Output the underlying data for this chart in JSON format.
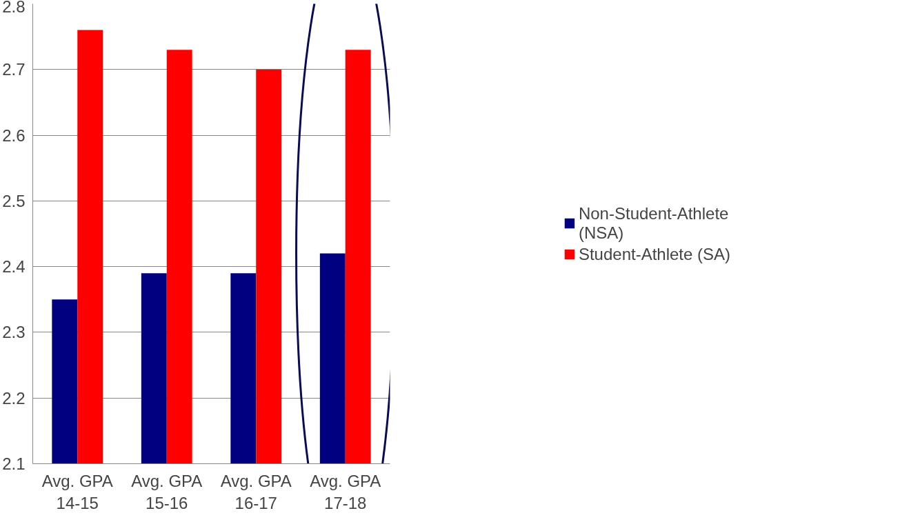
{
  "chart_data": {
    "type": "bar",
    "categories": [
      "Avg. GPA\n14-15",
      "Avg. GPA\n15-16",
      "Avg. GPA\n16-17",
      "Avg. GPA\n17-18"
    ],
    "series": [
      {
        "name": "Non-Student-Athlete\n(NSA)",
        "color": "#000080",
        "values": [
          2.35,
          2.39,
          2.39,
          2.42
        ]
      },
      {
        "name": "Student-Athlete (SA)",
        "color": "#ff0000",
        "values": [
          2.76,
          2.73,
          2.7,
          2.73
        ]
      }
    ],
    "ylim": [
      2.1,
      2.8
    ],
    "yticks": [
      2.1,
      2.2,
      2.3,
      2.4,
      2.5,
      2.6,
      2.7,
      2.8
    ],
    "grid": "y",
    "legend": "right"
  }
}
